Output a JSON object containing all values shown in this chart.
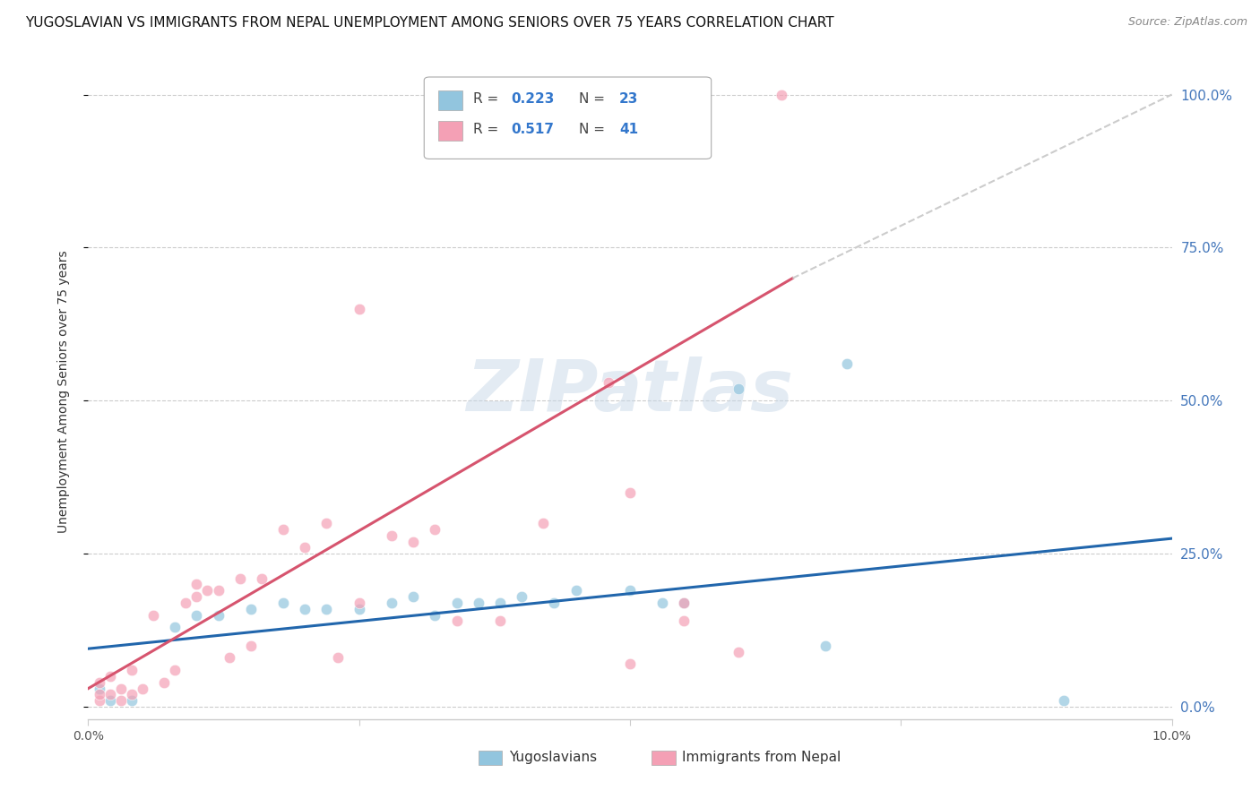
{
  "title": "YUGOSLAVIAN VS IMMIGRANTS FROM NEPAL UNEMPLOYMENT AMONG SENIORS OVER 75 YEARS CORRELATION CHART",
  "source": "Source: ZipAtlas.com",
  "ylabel": "Unemployment Among Seniors over 75 years",
  "ytick_labels": [
    "0.0%",
    "25.0%",
    "50.0%",
    "75.0%",
    "100.0%"
  ],
  "ytick_values": [
    0.0,
    0.25,
    0.5,
    0.75,
    1.0
  ],
  "xtick_labels": [
    "0.0%",
    "",
    "",
    "",
    "10.0%"
  ],
  "xtick_values": [
    0.0,
    0.025,
    0.05,
    0.075,
    0.1
  ],
  "xlim": [
    0.0,
    0.1
  ],
  "ylim": [
    -0.02,
    1.05
  ],
  "legend_label1": "Yugoslavians",
  "legend_label2": "Immigrants from Nepal",
  "color_blue": "#92c5de",
  "color_pink": "#f4a0b5",
  "trendline_blue": "#2166ac",
  "trendline_pink": "#d6546e",
  "trendline_dashed_color": "#cccccc",
  "watermark": "ZIPatlas",
  "blue_x": [
    0.001,
    0.002,
    0.004,
    0.008,
    0.01,
    0.012,
    0.015,
    0.018,
    0.02,
    0.022,
    0.025,
    0.028,
    0.03,
    0.032,
    0.034,
    0.036,
    0.038,
    0.04,
    0.043,
    0.045,
    0.05,
    0.053,
    0.055,
    0.06,
    0.068,
    0.07,
    0.09
  ],
  "blue_y": [
    0.03,
    0.01,
    0.01,
    0.13,
    0.15,
    0.15,
    0.16,
    0.17,
    0.16,
    0.16,
    0.16,
    0.17,
    0.18,
    0.15,
    0.17,
    0.17,
    0.17,
    0.18,
    0.17,
    0.19,
    0.19,
    0.17,
    0.17,
    0.52,
    0.1,
    0.56,
    0.01
  ],
  "pink_x": [
    0.001,
    0.001,
    0.001,
    0.002,
    0.002,
    0.003,
    0.003,
    0.004,
    0.004,
    0.005,
    0.006,
    0.007,
    0.008,
    0.009,
    0.01,
    0.01,
    0.011,
    0.012,
    0.013,
    0.014,
    0.015,
    0.016,
    0.018,
    0.02,
    0.022,
    0.023,
    0.025,
    0.025,
    0.028,
    0.03,
    0.032,
    0.034,
    0.038,
    0.042,
    0.048,
    0.05,
    0.055,
    0.055,
    0.06,
    0.064,
    0.05
  ],
  "pink_y": [
    0.01,
    0.02,
    0.04,
    0.02,
    0.05,
    0.01,
    0.03,
    0.02,
    0.06,
    0.03,
    0.15,
    0.04,
    0.06,
    0.17,
    0.18,
    0.2,
    0.19,
    0.19,
    0.08,
    0.21,
    0.1,
    0.21,
    0.29,
    0.26,
    0.3,
    0.08,
    0.65,
    0.17,
    0.28,
    0.27,
    0.29,
    0.14,
    0.14,
    0.3,
    0.53,
    0.07,
    0.14,
    0.17,
    0.09,
    1.0,
    0.35
  ],
  "blue_trend_x": [
    0.0,
    0.1
  ],
  "blue_trend_y": [
    0.095,
    0.275
  ],
  "pink_trend_x": [
    0.0,
    0.065
  ],
  "pink_trend_y": [
    0.03,
    0.7
  ],
  "dash_trend_x": [
    0.065,
    0.1
  ],
  "dash_trend_y": [
    0.7,
    1.0
  ],
  "title_fontsize": 11,
  "source_fontsize": 9,
  "axis_label_fontsize": 10,
  "tick_fontsize": 10,
  "legend_fontsize": 11,
  "scatter_size": 80,
  "scatter_alpha": 0.7
}
